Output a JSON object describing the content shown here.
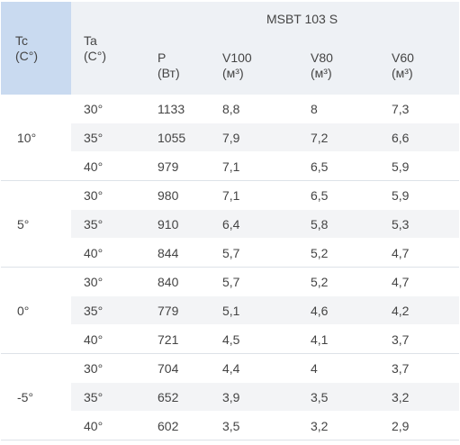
{
  "header": {
    "tc": [
      "Tc",
      "(C°)"
    ],
    "ta": [
      "Ta",
      "(C°)"
    ],
    "model": "MSBT 103 S",
    "columns": [
      [
        "P",
        "(Вт)"
      ],
      [
        "V100",
        "(м³)"
      ],
      [
        "V80",
        "(м³)"
      ],
      [
        "V60",
        "(м³)"
      ]
    ]
  },
  "groups": [
    {
      "tc": "10°",
      "rows": [
        [
          "30°",
          "1133",
          "8,8",
          "8",
          "7,3"
        ],
        [
          "35°",
          "1055",
          "7,9",
          "7,2",
          "6,6"
        ],
        [
          "40°",
          "979",
          "7,1",
          "6,5",
          "5,9"
        ]
      ]
    },
    {
      "tc": "5°",
      "rows": [
        [
          "30°",
          "980",
          "7,1",
          "6,5",
          "5,9"
        ],
        [
          "35°",
          "910",
          "6,4",
          "5,8",
          "5,3"
        ],
        [
          "40°",
          "844",
          "5,7",
          "5,2",
          "4,7"
        ]
      ]
    },
    {
      "tc": "0°",
      "rows": [
        [
          "30°",
          "840",
          "5,7",
          "5,2",
          "4,7"
        ],
        [
          "35°",
          "779",
          "5,1",
          "4,6",
          "4,2"
        ],
        [
          "40°",
          "721",
          "4,5",
          "4,1",
          "3,7"
        ]
      ]
    },
    {
      "tc": "-5°",
      "rows": [
        [
          "30°",
          "704",
          "4,4",
          "4",
          "3,7"
        ],
        [
          "35°",
          "652",
          "3,9",
          "3,5",
          "3,2"
        ],
        [
          "40°",
          "602",
          "3,5",
          "3,2",
          "2,9"
        ]
      ]
    }
  ]
}
